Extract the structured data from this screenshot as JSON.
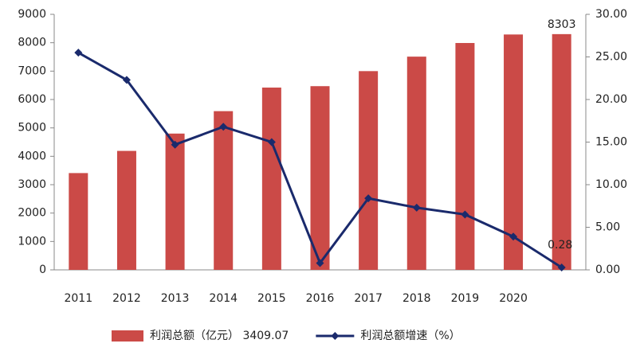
{
  "chart_data": {
    "type": "bar-line",
    "categories": [
      "2011",
      "2012",
      "2013",
      "2014",
      "2015",
      "2016",
      "2017",
      "2018",
      "2019",
      "2020",
      null
    ],
    "series": [
      {
        "name": "利润总额（亿元） 3409.07",
        "type": "bar",
        "color": "#cb4a47",
        "values": [
          3409.07,
          4190,
          4800,
          5590,
          6420,
          6470,
          7000,
          7510,
          7990,
          8290,
          8303
        ]
      },
      {
        "name": "利润总额增速（%）",
        "type": "line",
        "axis": "y2",
        "color": "#1a2a6c",
        "values": [
          25.5,
          22.3,
          14.7,
          16.8,
          15.0,
          0.8,
          8.4,
          7.3,
          6.5,
          3.9,
          0.28
        ]
      }
    ],
    "data_labels": "last",
    "ylim": [
      0,
      9000
    ],
    "yticks": [
      0,
      1000,
      2000,
      3000,
      4000,
      5000,
      6000,
      7000,
      8000,
      9000
    ],
    "y2lim": [
      0,
      30
    ],
    "y2ticks": [
      {
        "value": 0,
        "label": "0.00"
      },
      {
        "value": 5,
        "label": "5.00"
      },
      {
        "value": 10,
        "label": "10.00"
      },
      {
        "value": 15,
        "label": "15.00"
      },
      {
        "value": 20,
        "label": "20.00"
      },
      {
        "value": 25,
        "label": "25.00"
      },
      {
        "value": 30,
        "label": "30.00"
      }
    ],
    "grid": false,
    "legend": "bottom"
  }
}
